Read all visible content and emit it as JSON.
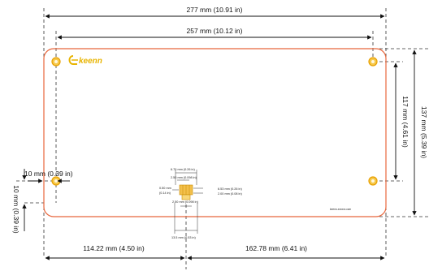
{
  "dimensions": {
    "overall_width": "277 mm  (10.91 in)",
    "hole_spacing_width": "257 mm  (10.12 in)",
    "overall_height": "137 mm  (5.39 in)",
    "hole_spacing_height": "117 mm  (4.61 in)",
    "hole_offset_x": "10 mm  (0.39 in)",
    "hole_offset_y": "10 mm  (0.39 in)",
    "left_to_connector": "114.22 mm  (4.50 in)",
    "connector_to_right": "162.78 mm  (6.41 in)"
  },
  "connector_detail": {
    "labels": [
      "6.70 mm  (0.26 in)",
      "2.50 mm  (0.098 in)",
      "0.50 mm",
      "(0.14 in)",
      "6.53 mm  (0.26 in)",
      "2.00 mm  (0.08 in)",
      "2.50 mm  (0.098 in)",
      "13.5 mm  (0.53 in)"
    ]
  },
  "board": {
    "logo_text": "keenn",
    "footer_text": "keenn-xxxxxx.com"
  },
  "colors": {
    "board_outline": "#e8663c",
    "logo": "#e8b400",
    "hole_ring": "#e8a000",
    "dim_line": "#111111"
  }
}
